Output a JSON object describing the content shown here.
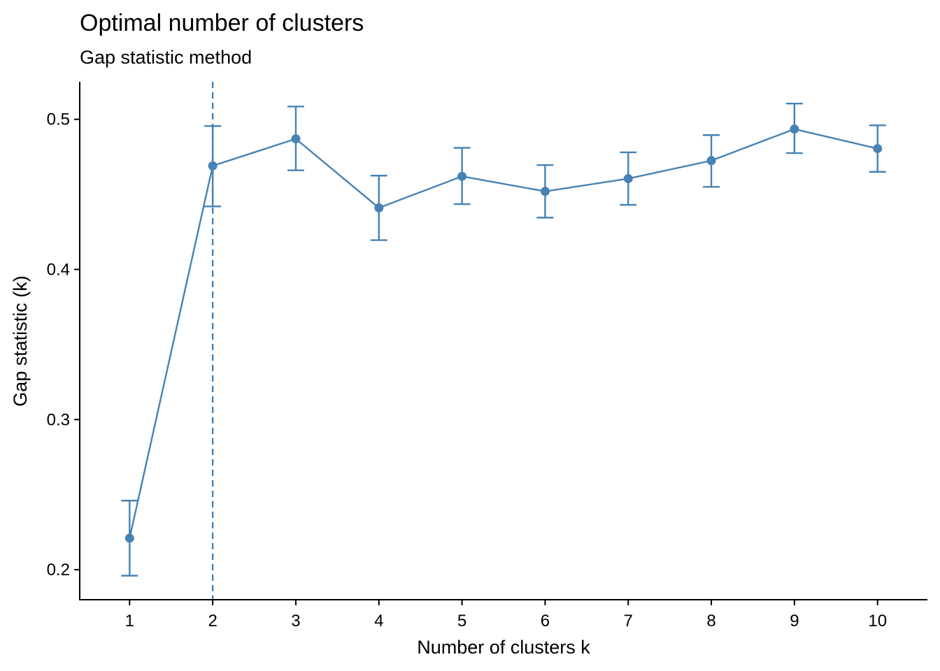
{
  "chart_data": {
    "type": "line",
    "title": "Optimal number of clusters",
    "subtitle": "Gap statistic method",
    "xlabel": "Number of clusters k",
    "ylabel": "Gap statistic (k)",
    "x": [
      1,
      2,
      3,
      4,
      5,
      6,
      7,
      8,
      9,
      10
    ],
    "x_tick_labels": [
      "1",
      "2",
      "3",
      "4",
      "5",
      "6",
      "7",
      "8",
      "9",
      "10"
    ],
    "xlim": [
      0.4,
      10.6
    ],
    "ylim": [
      0.18,
      0.525
    ],
    "y_ticks": [
      0.2,
      0.3,
      0.4,
      0.5
    ],
    "y_tick_labels": [
      "0.2",
      "0.3",
      "0.4",
      "0.5"
    ],
    "series": [
      {
        "values": [
          0.221,
          0.469,
          0.487,
          0.441,
          0.462,
          0.452,
          0.4605,
          0.4725,
          0.4935,
          0.4805
        ],
        "error_low": [
          0.196,
          0.442,
          0.466,
          0.4195,
          0.4435,
          0.4345,
          0.443,
          0.455,
          0.4775,
          0.465
        ],
        "error_high": [
          0.246,
          0.4955,
          0.5085,
          0.4625,
          0.481,
          0.4695,
          0.478,
          0.4895,
          0.5105,
          0.496
        ]
      }
    ],
    "reference_line": {
      "x": 2,
      "style": "dashed"
    },
    "color": "#4682B4",
    "grid": false,
    "legend": "none"
  }
}
